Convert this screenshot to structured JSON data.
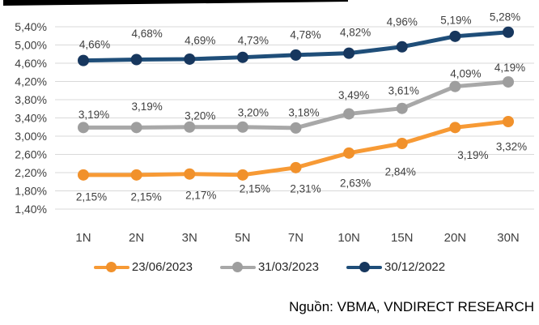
{
  "chart_data": {
    "type": "line",
    "categories": [
      "1N",
      "2N",
      "3N",
      "5N",
      "7N",
      "10N",
      "15N",
      "20N",
      "30N"
    ],
    "series": [
      {
        "name": "23/06/2023",
        "color": "#F79A35",
        "marker_color": "#F1912B",
        "values": [
          2.15,
          2.15,
          2.17,
          2.15,
          2.31,
          2.63,
          2.84,
          3.19,
          3.32
        ],
        "labels": [
          "2,15%",
          "2,15%",
          "2,17%",
          "2,15%",
          "2,31%",
          "2,63%",
          "2,84%",
          "3,19%",
          "3,32%"
        ],
        "label_side": "below"
      },
      {
        "name": "31/03/2023",
        "color": "#A8A8A8",
        "marker_color": "#9E9E9E",
        "values": [
          3.19,
          3.19,
          3.2,
          3.2,
          3.18,
          3.49,
          3.61,
          4.09,
          4.19
        ],
        "labels": [
          "3,19%",
          "3,19%",
          "3,20%",
          "3,20%",
          "3,18%",
          "3,49%",
          "3,61%",
          "4,09%",
          "4,19%"
        ],
        "label_side": "above"
      },
      {
        "name": "30/12/2022",
        "color": "#1F4E79",
        "marker_color": "#17375E",
        "values": [
          4.66,
          4.68,
          4.69,
          4.73,
          4.78,
          4.82,
          4.96,
          5.19,
          5.28
        ],
        "labels": [
          "4,66%",
          "4,68%",
          "4,69%",
          "4,73%",
          "4,78%",
          "4,82%",
          "4,96%",
          "5,19%",
          "5,28%"
        ],
        "label_side": "above"
      }
    ],
    "ylim": [
      1.4,
      5.4
    ],
    "ytick_step": 0.4,
    "ytick_labels": [
      "5,40%",
      "5,00%",
      "4,60%",
      "4,20%",
      "3,80%",
      "3,40%",
      "3,00%",
      "2,60%",
      "2,20%",
      "1,80%",
      "1,40%"
    ],
    "grid": true,
    "legend_position": "bottom",
    "title": "",
    "xlabel": "",
    "ylabel": ""
  },
  "source": {
    "text": "Nguồn: VBMA, VNDIRECT RESEARCH"
  },
  "colors": {
    "gridline": "#D9D9D9",
    "axis_text": "#404040",
    "data_label_text": "#404040",
    "legend_text": "#262626",
    "source_text": "#000000",
    "top_bar": "#000000"
  }
}
